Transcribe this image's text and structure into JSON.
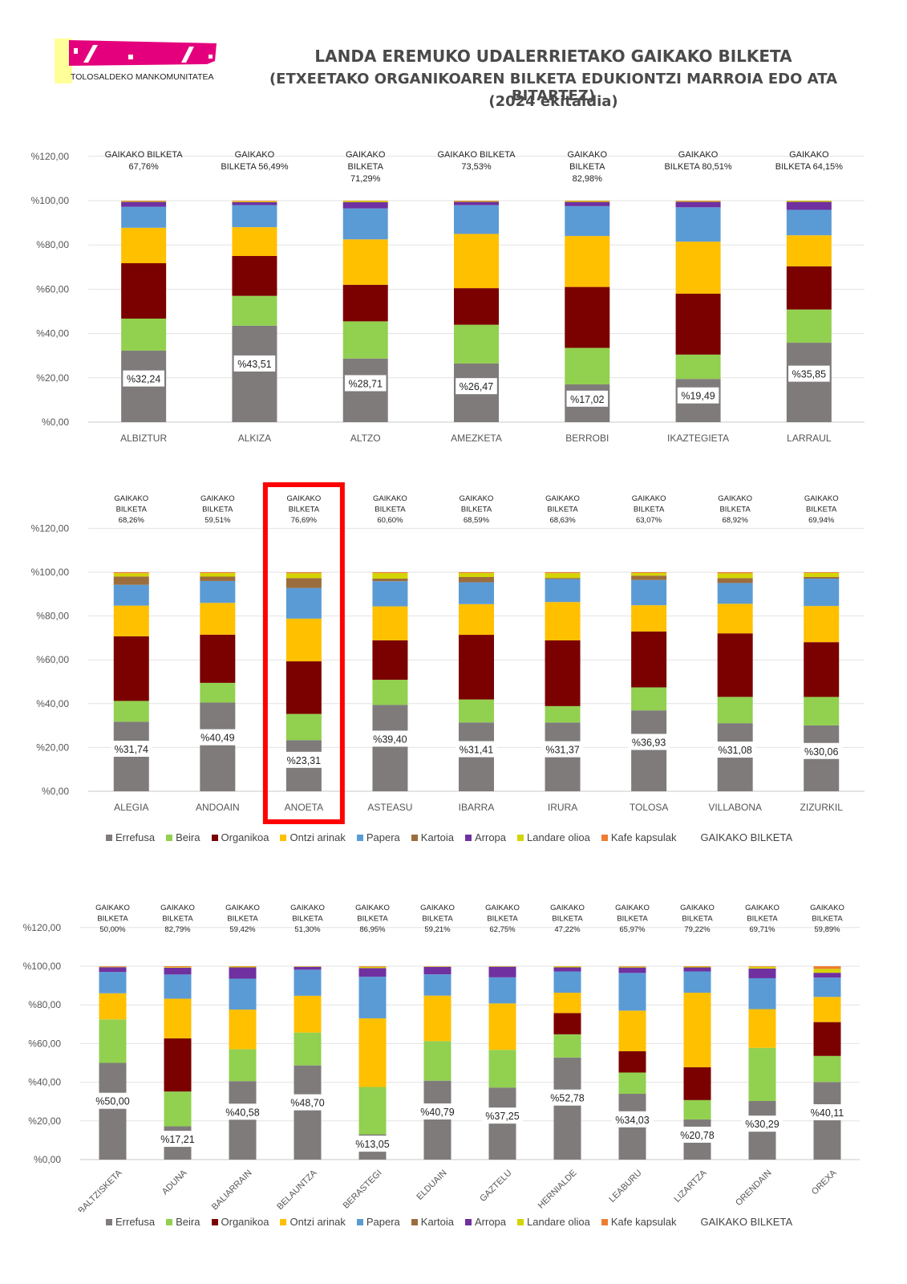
{
  "header": {
    "logo_text": "TOLOSALDEKO MANKOMUNITATEA",
    "title_line1": "LANDA EREMUKO UDALERRIETAKO GAIKAKO BILKETA",
    "title_line2": "(ETXEETAKO ORGANIKOAREN BILKETA EDUKIONTZI MARROIA EDO ATA BITARTEZ)",
    "title_line3": "(2024 ekitaldia)"
  },
  "colors": {
    "Errefusa": "#7f7b7b",
    "Beira": "#92d050",
    "Organikoa": "#7b0000",
    "Ontzi arinak": "#ffc000",
    "Papera": "#5b9bd5",
    "Kartoia": "#9c6d3c",
    "Arropa": "#7030a0",
    "Landare olioa": "#d4d400",
    "Kafe kapsulak": "#ed7d31",
    "highlight": "#ff0000",
    "logo": "#e4007c",
    "logo_bg": "#ffff99"
  },
  "legend": {
    "items": [
      "Errefusa",
      "Beira",
      "Organikoa",
      "Ontzi arinak",
      "Papera",
      "Kartoia",
      "Arropa",
      "Landare olioa",
      "Kafe kapsulak",
      "GAIKAKO BILKETA"
    ]
  },
  "chart_data": [
    {
      "type": "bar",
      "stacked": true,
      "yticks": [
        "%0,00",
        "%20,00",
        "%40,00",
        "%60,00",
        "%80,00",
        "%100,00",
        "%120,00"
      ],
      "ylim": [
        0,
        120
      ],
      "categories": [
        "ALBIZTUR",
        "ALKIZA",
        "ALTZO",
        "AMEZKETA",
        "BERROBI",
        "IKAZTEGIETA",
        "LARRAUL"
      ],
      "gaikako_labels": [
        [
          "GAIKAKO BILKETA",
          "67,76%"
        ],
        [
          "GAIKAKO",
          "BILKETA 56,49%"
        ],
        [
          "GAIKAKO",
          "BILKETA",
          "71,29%"
        ],
        [
          "GAIKAKO BILKETA",
          "73,53%"
        ],
        [
          "GAIKAKO",
          "BILKETA",
          "82,98%"
        ],
        [
          "GAIKAKO",
          "BILKETA 80,51%"
        ],
        [
          "GAIKAKO",
          "BILKETA 64,15%"
        ]
      ],
      "errefusa_labels": [
        "%32,24",
        "%43,51",
        "%28,71",
        "%26,47",
        "%17,02",
        "%19,49",
        "%35,85"
      ],
      "series": [
        {
          "name": "Errefusa",
          "values": [
            32.24,
            43.51,
            28.71,
            26.47,
            17.02,
            19.49,
            35.85
          ]
        },
        {
          "name": "Beira",
          "values": [
            14.5,
            13.5,
            16.8,
            17.5,
            16.5,
            11,
            15
          ]
        },
        {
          "name": "Organikoa",
          "values": [
            25,
            18,
            16.5,
            16.5,
            27.5,
            27.5,
            19.5
          ]
        },
        {
          "name": "Ontzi arinak",
          "values": [
            16,
            13,
            20.5,
            24.5,
            23,
            23.5,
            14
          ]
        },
        {
          "name": "Papera",
          "values": [
            9.5,
            10,
            14,
            13,
            13.5,
            15.5,
            11.5
          ]
        },
        {
          "name": "Kartoia",
          "values": [
            0,
            0,
            0,
            0,
            0,
            0,
            0
          ]
        },
        {
          "name": "Arropa",
          "values": [
            2.2,
            1.3,
            2.8,
            1.5,
            1.9,
            2.5,
            3.6
          ]
        },
        {
          "name": "Landare olioa",
          "values": [
            0.3,
            0.4,
            0.5,
            0.3,
            0.4,
            0.3,
            0.5
          ]
        },
        {
          "name": "Kafe kapsulak",
          "values": [
            0.26,
            0.29,
            0.19,
            0.23,
            0.18,
            0.21,
            0.05
          ]
        }
      ]
    },
    {
      "type": "bar",
      "stacked": true,
      "yticks": [
        "%0,00",
        "%20,00",
        "%40,00",
        "%60,00",
        "%80,00",
        "%100,00",
        "%120,00"
      ],
      "ylim": [
        0,
        120
      ],
      "categories": [
        "ALEGIA",
        "ANDOAIN",
        "ANOETA",
        "ASTEASU",
        "IBARRA",
        "IRURA",
        "TOLOSA",
        "VILLABONA",
        "ZIZURKIL"
      ],
      "highlight_index": 2,
      "gaikako_labels": [
        [
          "GAIKAKO",
          "BILKETA",
          "68,26%"
        ],
        [
          "GAIKAKO",
          "BILKETA",
          "59,51%"
        ],
        [
          "GAIKAKO",
          "BILKETA",
          "76,69%"
        ],
        [
          "GAIKAKO",
          "BILKETA",
          "60,60%"
        ],
        [
          "GAIKAKO",
          "BILKETA",
          "68,59%"
        ],
        [
          "GAIKAKO",
          "BILKETA",
          "68,63%"
        ],
        [
          "GAIKAKO",
          "BILKETA",
          "63,07%"
        ],
        [
          "GAIKAKO",
          "BILKETA",
          "68,92%"
        ],
        [
          "GAIKAKO",
          "BILKETA",
          "69,94%"
        ]
      ],
      "errefusa_labels": [
        "%31,74",
        "%40,49",
        "%23,31",
        "%39,40",
        "%31,41",
        "%31,37",
        "%36,93",
        "%31,08",
        "%30,06"
      ],
      "series": [
        {
          "name": "Errefusa",
          "values": [
            31.74,
            40.49,
            23.31,
            39.4,
            31.41,
            31.37,
            36.93,
            31.08,
            30.06
          ]
        },
        {
          "name": "Beira",
          "values": [
            9.5,
            9,
            12,
            11.5,
            10.5,
            7.5,
            10.5,
            12,
            13
          ]
        },
        {
          "name": "Organikoa",
          "values": [
            29.5,
            22,
            24,
            18,
            29.5,
            30,
            25.5,
            29,
            25
          ]
        },
        {
          "name": "Ontzi arinak",
          "values": [
            14,
            14.5,
            19.5,
            15.5,
            14,
            17.5,
            12,
            13.5,
            16.5
          ]
        },
        {
          "name": "Papera",
          "values": [
            9.5,
            10,
            14,
            11.5,
            10,
            10.5,
            11.5,
            9.5,
            12.5
          ]
        },
        {
          "name": "Kartoia",
          "values": [
            3.8,
            2,
            4.5,
            1.2,
            2.4,
            0.5,
            2,
            2.2,
            0.8
          ]
        },
        {
          "name": "Arropa",
          "values": [
            0,
            0,
            0,
            0,
            0,
            0,
            0,
            0,
            0
          ]
        },
        {
          "name": "Landare olioa",
          "values": [
            1.5,
            1.6,
            2.2,
            2.5,
            1.8,
            2.2,
            1.2,
            2.2,
            1.8
          ]
        },
        {
          "name": "Kafe kapsulak",
          "values": [
            0.46,
            0.41,
            0.49,
            0.4,
            0.39,
            0.43,
            0.37,
            0.52,
            0.34
          ]
        }
      ]
    },
    {
      "type": "bar",
      "stacked": true,
      "yticks": [
        "%0,00",
        "%20,00",
        "%40,00",
        "%60,00",
        "%80,00",
        "%100,00",
        "%120,00"
      ],
      "ylim": [
        0,
        120
      ],
      "categories": [
        "ABALTZISKETA",
        "ADUNA",
        "BALIARRAIN",
        "BELAUNTZA",
        "BERASTEGI",
        "ELDUAIN",
        "GAZTELU",
        "HERNIALDE",
        "LEABURU",
        "LIZARTZA",
        "ORENDAIN",
        "OREXA"
      ],
      "gaikako_labels": [
        [
          "GAIKAKO",
          "BILKETA",
          "50,00%"
        ],
        [
          "GAIKAKO",
          "BILKETA",
          "82,79%"
        ],
        [
          "GAIKAKO",
          "BILKETA",
          "59,42%"
        ],
        [
          "GAIKAKO",
          "BILKETA",
          "51,30%"
        ],
        [
          "GAIKAKO",
          "BILKETA",
          "86,95%"
        ],
        [
          "GAIKAKO",
          "BILKETA",
          "59,21%"
        ],
        [
          "GAIKAKO",
          "BILKETA",
          "62,75%"
        ],
        [
          "GAIKAKO",
          "BILKETA",
          "47,22%"
        ],
        [
          "GAIKAKO",
          "BILKETA",
          "65,97%"
        ],
        [
          "GAIKAKO",
          "BILKETA",
          "79,22%"
        ],
        [
          "GAIKAKO",
          "BILKETA",
          "69,71%"
        ],
        [
          "GAIKAKO",
          "BILKETA",
          "59,89%"
        ]
      ],
      "errefusa_labels": [
        "%50,00",
        "%17,21",
        "%40,58",
        "%48,70",
        "%13,05",
        "%40,79",
        "%37,25",
        "%52,78",
        "%34,03",
        "%20,78",
        "%30,29",
        "%40,11"
      ],
      "series": [
        {
          "name": "Errefusa",
          "values": [
            50,
            17.21,
            40.58,
            48.7,
            13.05,
            40.79,
            37.25,
            52.78,
            34.03,
            20.78,
            30.29,
            40.11
          ]
        },
        {
          "name": "Beira",
          "values": [
            22.5,
            18,
            16.5,
            17,
            24.5,
            20.5,
            19.5,
            12,
            11,
            10,
            27.5,
            13.5
          ]
        },
        {
          "name": "Organikoa",
          "values": [
            0,
            27.5,
            0,
            0,
            0,
            0,
            0,
            11,
            11,
            17,
            0,
            17.5
          ]
        },
        {
          "name": "Ontzi arinak",
          "values": [
            13.5,
            20.5,
            20.5,
            19,
            35.5,
            23.5,
            24,
            10.5,
            21,
            38.5,
            20,
            13
          ]
        },
        {
          "name": "Papera",
          "values": [
            11,
            12.5,
            16,
            13.5,
            21.5,
            11,
            13.5,
            11,
            19.5,
            11,
            16,
            10
          ]
        },
        {
          "name": "Kartoia",
          "values": [
            0,
            0,
            0,
            0,
            0,
            0,
            0,
            0,
            0,
            0,
            0,
            0
          ]
        },
        {
          "name": "Arropa",
          "values": [
            2.5,
            3.5,
            5.8,
            1.5,
            4.5,
            3.9,
            5.5,
            2.1,
            2.8,
            2.1,
            5,
            2.5
          ]
        },
        {
          "name": "Landare olioa",
          "values": [
            0.2,
            0.3,
            0.4,
            0.2,
            0.6,
            0.2,
            0.2,
            0.5,
            0.4,
            0.4,
            0.9,
            2
          ]
        },
        {
          "name": "Kafe kapsulak",
          "values": [
            0.3,
            0.49,
            0.22,
            0.1,
            0.35,
            0.11,
            0.05,
            0.11,
            0.26,
            0.22,
            0.31,
            1.39
          ]
        }
      ]
    }
  ]
}
